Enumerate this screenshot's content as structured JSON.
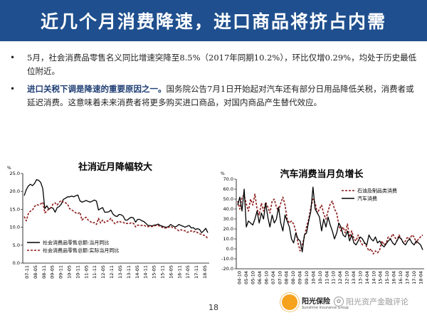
{
  "header": {
    "title": "近几个月消费降速，进口商品将挤占内需"
  },
  "bullets": [
    {
      "bold": "",
      "text": "5月，社会消费品零售名义同比增速突降至8.5%（2017年同期10.2%），环比仅增0.29%，均处于历史最低位附近。"
    },
    {
      "bold": "进口关税下调是降速的重要原因之一。",
      "text": "国务院公告7月1日开始起对汽车还有部分日用品降低关税，消费者或延迟消费。这意味着未来消费者将更多购买进口商品，对国内商品产生替代效应。"
    }
  ],
  "bullet_glyph": "•",
  "colors": {
    "header_bg": "#1f4f8e",
    "series_black": "#000000",
    "series_red": "#8b1a1a"
  },
  "chart_data": [
    {
      "type": "line",
      "title": "社消近月降幅较大",
      "ylabel": "%",
      "ylim": [
        0.0,
        25.0
      ],
      "yticks": [
        "0.0",
        "5.0",
        "10.0",
        "15.0",
        "20.0",
        "25.0"
      ],
      "ytick_values": [
        0,
        5,
        10,
        15,
        20,
        25
      ],
      "xticks": [
        "07-11",
        "08-05",
        "08-11",
        "09-05",
        "09-11",
        "10-05",
        "10-11",
        "11-05",
        "11-11",
        "12-05",
        "12-11",
        "13-05",
        "13-11",
        "14-05",
        "14-11",
        "15-05",
        "15-11",
        "16-05",
        "16-11",
        "17-05",
        "17-11",
        "18-05"
      ],
      "legend_position": "bottom-left",
      "series": [
        {
          "name": "社会消费品零售总额:当月同比",
          "style": "solid",
          "color": "#000000",
          "values": [
            18.8,
            20.5,
            21.5,
            22.0,
            21.6,
            22.2,
            23.3,
            23.1,
            22.5,
            20.8,
            15.2,
            16.0,
            15.0,
            15.5,
            15.3,
            14.2,
            15.5,
            15.8,
            16.5,
            17.8,
            18.1,
            18.5,
            18.5,
            18.7,
            18.5,
            18.8,
            19.0,
            17.4,
            17.0,
            17.2,
            17.5,
            17.2,
            17.0,
            17.3,
            17.6,
            17.3,
            14.8,
            15.2,
            15.5,
            14.2,
            14.2,
            14.3,
            14.8,
            13.7,
            13.2,
            13.0,
            13.6,
            13.5,
            13.1,
            12.0,
            12.0,
            12.5,
            12.8,
            12.6,
            11.4,
            12.2,
            12.2,
            11.8,
            11.6,
            11.1,
            10.5,
            10.5,
            10.4,
            10.6,
            10.7,
            10.9,
            10.5,
            10.3,
            10.1,
            10.0,
            10.2,
            10.8,
            10.4,
            10.1,
            10.3,
            10.8,
            10.5,
            10.3,
            10.0,
            10.3,
            10.5,
            9.8,
            9.9,
            9.4,
            9.6,
            9.4,
            8.5,
            9.0,
            9.7,
            8.5
          ],
          "annotations": []
        },
        {
          "name": "社会消费品零售总额:实际当月同比",
          "style": "dashed",
          "color": "#8b1a1a",
          "values": [
            13.0,
            11.8,
            13.8,
            14.5,
            14.8,
            15.8,
            16.3,
            16.2,
            16.5,
            17.0,
            14.0,
            14.5,
            15.2,
            15.5,
            16.5,
            16.8,
            16.2,
            17.0,
            17.5,
            17.0,
            16.8,
            16.5,
            15.2,
            14.8,
            14.5,
            14.0,
            13.8,
            14.2,
            12.0,
            12.5,
            12.8,
            12.0,
            11.6,
            11.2,
            11.3,
            10.8,
            12.5,
            11.2,
            12.0,
            11.3,
            11.7,
            11.8,
            12.5,
            11.6,
            11.0,
            11.4,
            11.7,
            11.4,
            11.4,
            11.0,
            11.1,
            11.0,
            11.3,
            11.1,
            10.1,
            10.6,
            10.5,
            10.5,
            10.6,
            10.3,
            10.2,
            10.2,
            10.2,
            10.4,
            10.5,
            10.5,
            10.2,
            10.0,
            9.8,
            9.8,
            10.0,
            10.3,
            9.9,
            9.8,
            9.4,
            9.0,
            9.3,
            9.1,
            9.0,
            8.6,
            8.8,
            9.0,
            8.7,
            8.9,
            8.5,
            8.2,
            8.0,
            7.8,
            7.6,
            6.8
          ],
          "annotations": []
        }
      ]
    },
    {
      "type": "line",
      "title": "汽车消费当月负增长",
      "ylabel": "%",
      "ylim": [
        -20.0,
        70.0
      ],
      "yticks": [
        "-20.0",
        "-10.0",
        "0.0",
        "10.0",
        "20.0",
        "30.0",
        "40.0",
        "50.0",
        "60.0",
        "70.0"
      ],
      "ytick_values": [
        -20,
        -10,
        0,
        10,
        20,
        30,
        40,
        50,
        60,
        70
      ],
      "xticks": [
        "04-10",
        "05-04",
        "05-10",
        "06-04",
        "06-10",
        "07-04",
        "07-10",
        "08-04",
        "08-10",
        "09-04",
        "09-10",
        "10-04",
        "10-10",
        "11-04",
        "11-10",
        "12-04",
        "12-10",
        "13-04",
        "13-10",
        "14-04",
        "14-10",
        "15-04",
        "15-10",
        "16-04",
        "16-10",
        "17-04",
        "17-10",
        "18-04"
      ],
      "legend_position": "top-right",
      "series": [
        {
          "name": "石油及制品类消费",
          "style": "dashed",
          "color": "#8b1a1a",
          "values": [
            48,
            40,
            52,
            54,
            45,
            38,
            50,
            44,
            55,
            40,
            34,
            46,
            38,
            47,
            42,
            36,
            48,
            50,
            42,
            38,
            46,
            52,
            44,
            30,
            26,
            28,
            25,
            18,
            6,
            -2,
            4,
            12,
            22,
            30,
            42,
            50,
            46,
            36,
            40,
            44,
            35,
            30,
            38,
            45,
            48,
            40,
            36,
            24,
            18,
            22,
            16,
            25,
            12,
            18,
            10,
            8,
            14,
            8,
            4,
            6,
            2,
            -2,
            0,
            -5,
            -2,
            -4,
            -1,
            8,
            4,
            6,
            12,
            10,
            15,
            12,
            8,
            14,
            10,
            6,
            8,
            12,
            10,
            14,
            12,
            6,
            10,
            12,
            14
          ],
          "annotations": []
        },
        {
          "name": "汽车消费",
          "style": "solid",
          "color": "#000000",
          "values": [
            44,
            52,
            38,
            60,
            22,
            28,
            26,
            24,
            30,
            38,
            26,
            36,
            30,
            46,
            32,
            22,
            34,
            26,
            30,
            42,
            26,
            18,
            34,
            28,
            22,
            10,
            6,
            16,
            10,
            8,
            -3,
            14,
            16,
            28,
            38,
            62,
            40,
            36,
            32,
            18,
            30,
            22,
            32,
            24,
            18,
            10,
            16,
            26,
            22,
            14,
            12,
            18,
            8,
            14,
            6,
            4,
            8,
            12,
            10,
            6,
            4,
            14,
            10,
            8,
            12,
            6,
            8,
            4,
            2,
            5,
            8,
            10,
            6,
            4,
            8,
            12,
            10,
            6,
            4,
            8,
            10,
            6,
            4,
            8,
            6,
            4,
            -1
          ],
          "annotations": []
        }
      ]
    }
  ],
  "page_number": "18",
  "logo": {
    "cn": "阳光保险",
    "en": "Sunshine Insurance Group"
  },
  "watermark": "阳光资产金融评论"
}
